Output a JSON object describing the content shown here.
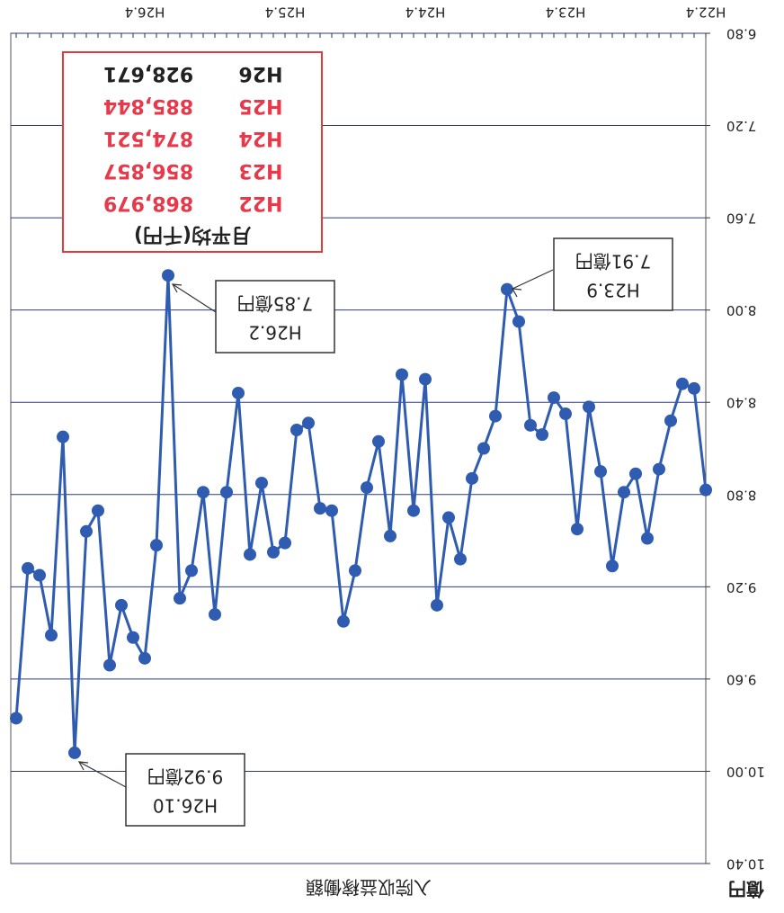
{
  "chart_data": {
    "type": "line",
    "title": "入院収益稼働額",
    "y_label": "億円",
    "categories": [
      "H22.4",
      null,
      null,
      null,
      null,
      null,
      null,
      null,
      null,
      null,
      null,
      null,
      "H23.4",
      null,
      null,
      null,
      null,
      null,
      null,
      null,
      null,
      null,
      null,
      null,
      "H24.4",
      null,
      null,
      null,
      null,
      null,
      null,
      null,
      null,
      null,
      null,
      null,
      "H25.4",
      null,
      null,
      null,
      null,
      null,
      null,
      null,
      null,
      null,
      null,
      null,
      "H26.4",
      null,
      null,
      null,
      null,
      null,
      null,
      null,
      null,
      null,
      null,
      null
    ],
    "series": [
      {
        "name": "入院収益稼働額",
        "color": "#2f5cb0",
        "values": [
          8.78,
          8.34,
          8.32,
          8.48,
          8.69,
          8.99,
          8.71,
          8.79,
          9.11,
          8.7,
          8.42,
          8.95,
          8.45,
          8.38,
          8.54,
          8.5,
          8.05,
          7.91,
          8.46,
          8.6,
          8.73,
          9.08,
          8.9,
          9.28,
          8.3,
          8.87,
          8.28,
          8.98,
          8.57,
          8.77,
          9.13,
          9.35,
          8.87,
          8.86,
          8.49,
          8.52,
          9.01,
          9.05,
          8.75,
          9.06,
          8.36,
          8.79,
          9.32,
          8.79,
          9.13,
          9.25,
          7.85,
          9.02,
          9.51,
          9.42,
          9.28,
          9.54,
          8.87,
          8.96,
          9.92,
          8.55,
          9.41,
          9.15,
          9.12,
          9.77
        ]
      }
    ],
    "ylim": [
      6.8,
      10.4
    ],
    "yticks": [
      {
        "value": 6.8,
        "label": "6.80"
      },
      {
        "value": 7.2,
        "label": "7.20"
      },
      {
        "value": 7.6,
        "label": "7.60"
      },
      {
        "value": 8.0,
        "label": "8.00"
      },
      {
        "value": 8.4,
        "label": "8.40"
      },
      {
        "value": 8.8,
        "label": "8.80"
      },
      {
        "value": 9.2,
        "label": "9.20"
      },
      {
        "value": 9.6,
        "label": "9.60"
      },
      {
        "value": 10.0,
        "label": "10.00"
      },
      {
        "value": 10.4,
        "label": "10.40"
      }
    ],
    "grid": true,
    "annotations": [
      {
        "line1": "H26.10",
        "line2": "9.92億円"
      },
      {
        "line1": "H26.2",
        "line2": "7.85億円"
      },
      {
        "line1": "H23.9",
        "line2": "7.91億円"
      }
    ],
    "monthly_average": {
      "title": "月平均(千円)",
      "border_color": "#e23b3b",
      "rows": [
        {
          "year": "H22",
          "value": "868,979",
          "color": "#e8384a"
        },
        {
          "year": "H23",
          "value": "856,857",
          "color": "#e8384a"
        },
        {
          "year": "H24",
          "value": "874,521",
          "color": "#e8384a"
        },
        {
          "year": "H25",
          "value": "885,844",
          "color": "#e8384a"
        },
        {
          "year": "H26",
          "value": "928,671",
          "color": "#222222"
        }
      ]
    }
  }
}
